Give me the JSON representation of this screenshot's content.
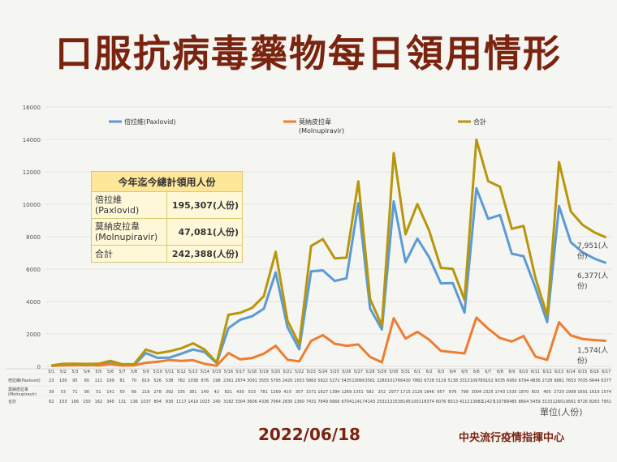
{
  "title": "口服抗病毒藥物每日領用情形",
  "date": "2022/06/18",
  "source": "中央流行疫情指揮中心",
  "unit_label": "單位(人份)",
  "summary": {
    "header": "今年迄今總計領用人份",
    "rows": [
      {
        "name": "倍拉維\n(Paxlovid)",
        "value": "195,307(人份)"
      },
      {
        "name": "莫納皮拉韋\n(Molnupiravir)",
        "value": "47,081(人份)"
      },
      {
        "name": "合計",
        "value": "242,388(人份)"
      }
    ]
  },
  "end_labels": {
    "total": "7,951(人份)",
    "paxlovid": "6,377(人份)",
    "molnupiravir": "1,574(人份)"
  },
  "colors": {
    "paxlovid": "#5b9bd5",
    "molnupiravir": "#ed7d31",
    "total": "#b8960c",
    "title": "#7a2410"
  },
  "chart_data": {
    "type": "line",
    "ylim": [
      0,
      16000
    ],
    "yticks": [
      0,
      2000,
      4000,
      6000,
      8000,
      10000,
      12000,
      14000,
      16000
    ],
    "categories": [
      "5/1",
      "5/2",
      "5/3",
      "5/4",
      "5/5",
      "5/6",
      "5/7",
      "5/8",
      "5/9",
      "5/10",
      "5/11",
      "5/12",
      "5/13",
      "5/14",
      "5/15",
      "5/16",
      "5/17",
      "5/18",
      "5/19",
      "5/20",
      "5/21",
      "5/22",
      "5/23",
      "5/24",
      "5/25",
      "5/26",
      "5/27",
      "5/28",
      "5/29",
      "5/30",
      "5/31",
      "6/1",
      "6/2",
      "6/3",
      "6/4",
      "6/5",
      "6/6",
      "6/7",
      "6/8",
      "6/9",
      "6/10",
      "6/11",
      "6/12",
      "6/13",
      "6/14",
      "6/15",
      "6/16",
      "6/17"
    ],
    "series": [
      {
        "name": "倍拉維(Paxlovid)",
        "table_label": "倍拉維(Paxlovid)",
        "key": "paxlovid",
        "values": [
          23,
          100,
          95,
          60,
          111,
          199,
          81,
          70,
          819,
          526,
          538,
          782,
          1038,
          876,
          198,
          2361,
          2874,
          3091,
          3555,
          5795,
          2420,
          1053,
          5860,
          5922,
          5272,
          5435,
          10066,
          3561,
          2280,
          10176,
          6430,
          7882,
          6728,
          5119,
          5138,
          3313,
          10978,
          9102,
          9335,
          6950,
          6794,
          4856,
          2728,
          9881,
          7653,
          7035,
          6644,
          6377
        ]
      },
      {
        "name": "莫納皮拉韋\n(Molnupiravir)",
        "table_label": "莫納皮拉韋\n(Molnupiravir)",
        "key": "molnupiravir",
        "values": [
          39,
          53,
          71,
          90,
          51,
          141,
          50,
          66,
          218,
          278,
          392,
          335,
          381,
          149,
          42,
          821,
          430,
          515,
          781,
          1269,
          410,
          307,
          1571,
          1927,
          1394,
          1269,
          1351,
          582,
          252,
          2977,
          1715,
          2129,
          1646,
          957,
          876,
          798,
          3004,
          2325,
          1743,
          1535,
          1870,
          603,
          405,
          2720,
          1908,
          1691,
          1619,
          1574
        ]
      },
      {
        "name": "合計",
        "table_label": "合計",
        "key": "total",
        "values": [
          62,
          153,
          166,
          150,
          162,
          340,
          131,
          136,
          1037,
          804,
          930,
          1117,
          1419,
          1025,
          240,
          3182,
          3304,
          3606,
          4336,
          7064,
          2830,
          1360,
          7431,
          7849,
          6666,
          6704,
          11417,
          4143,
          2532,
          13153,
          8145,
          10011,
          8374,
          6076,
          6013,
          4111,
          13982,
          11427,
          11078,
          8485,
          8664,
          5459,
          3133,
          12601,
          9561,
          8726,
          8263,
          7951
        ]
      }
    ]
  }
}
